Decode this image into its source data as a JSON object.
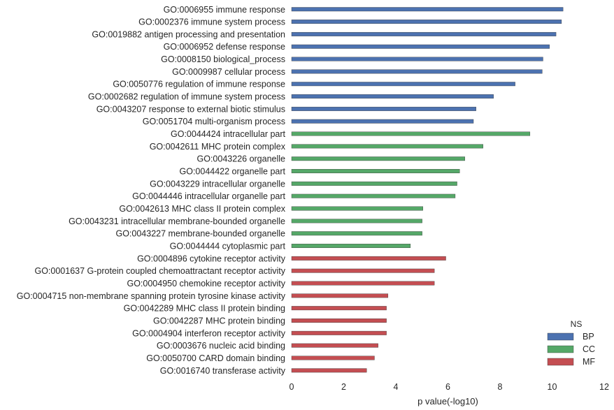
{
  "chart_data": {
    "type": "bar",
    "orientation": "horizontal",
    "xlabel": "p value(-log10)",
    "ylabel": "",
    "xlim": [
      0,
      12
    ],
    "xticks": [
      0,
      2,
      4,
      6,
      8,
      10,
      12
    ],
    "grid": false,
    "legend": {
      "title": "NS",
      "placement": "bottom-right",
      "entries": [
        {
          "name": "BP",
          "color": "#4c72b0"
        },
        {
          "name": "CC",
          "color": "#55a868"
        },
        {
          "name": "MF",
          "color": "#c44e52"
        }
      ]
    },
    "bars": [
      {
        "label": "GO:0006955 immune response",
        "value": 10.42,
        "ns": "BP"
      },
      {
        "label": "GO:0002376 immune system process",
        "value": 10.36,
        "ns": "BP"
      },
      {
        "label": "GO:0019882 antigen processing and presentation",
        "value": 10.15,
        "ns": "BP"
      },
      {
        "label": "GO:0006952 defense response",
        "value": 9.9,
        "ns": "BP"
      },
      {
        "label": "GO:0008150 biological_process",
        "value": 9.65,
        "ns": "BP"
      },
      {
        "label": "GO:0009987 cellular process",
        "value": 9.62,
        "ns": "BP"
      },
      {
        "label": "GO:0050776 regulation of immune response",
        "value": 8.58,
        "ns": "BP"
      },
      {
        "label": "GO:0002682 regulation of immune system process",
        "value": 7.75,
        "ns": "BP"
      },
      {
        "label": "GO:0043207 response to external biotic stimulus",
        "value": 7.08,
        "ns": "BP"
      },
      {
        "label": "GO:0051704 multi-organism process",
        "value": 6.98,
        "ns": "BP"
      },
      {
        "label": "GO:0044424 intracellular part",
        "value": 9.15,
        "ns": "CC"
      },
      {
        "label": "GO:0042611 MHC protein complex",
        "value": 7.35,
        "ns": "CC"
      },
      {
        "label": "GO:0043226 organelle",
        "value": 6.65,
        "ns": "CC"
      },
      {
        "label": "GO:0044422 organelle part",
        "value": 6.45,
        "ns": "CC"
      },
      {
        "label": "GO:0043229 intracellular organelle",
        "value": 6.35,
        "ns": "CC"
      },
      {
        "label": "GO:0044446 intracellular organelle part",
        "value": 6.28,
        "ns": "CC"
      },
      {
        "label": "GO:0042613 MHC class II protein complex",
        "value": 5.04,
        "ns": "CC"
      },
      {
        "label": "GO:0043231 intracellular membrane-bounded organelle",
        "value": 5.01,
        "ns": "CC"
      },
      {
        "label": "GO:0043227 membrane-bounded organelle",
        "value": 5.01,
        "ns": "CC"
      },
      {
        "label": "GO:0044444 cytoplasmic part",
        "value": 4.56,
        "ns": "CC"
      },
      {
        "label": "GO:0004896 cytokine receptor activity",
        "value": 5.92,
        "ns": "MF"
      },
      {
        "label": "GO:0001637 G-protein coupled chemoattractant receptor activity",
        "value": 5.48,
        "ns": "MF"
      },
      {
        "label": "GO:0004950 chemokine receptor activity",
        "value": 5.48,
        "ns": "MF"
      },
      {
        "label": "GO:0004715 non-membrane spanning protein tyrosine kinase activity",
        "value": 3.7,
        "ns": "MF"
      },
      {
        "label": "GO:0042289 MHC class II protein binding",
        "value": 3.64,
        "ns": "MF"
      },
      {
        "label": "GO:0042287 MHC protein binding",
        "value": 3.64,
        "ns": "MF"
      },
      {
        "label": "GO:0004904 interferon receptor activity",
        "value": 3.64,
        "ns": "MF"
      },
      {
        "label": "GO:0003676 nucleic acid binding",
        "value": 3.32,
        "ns": "MF"
      },
      {
        "label": "GO:0050700 CARD domain binding",
        "value": 3.18,
        "ns": "MF"
      },
      {
        "label": "GO:0016740 transferase activity",
        "value": 2.88,
        "ns": "MF"
      }
    ]
  }
}
